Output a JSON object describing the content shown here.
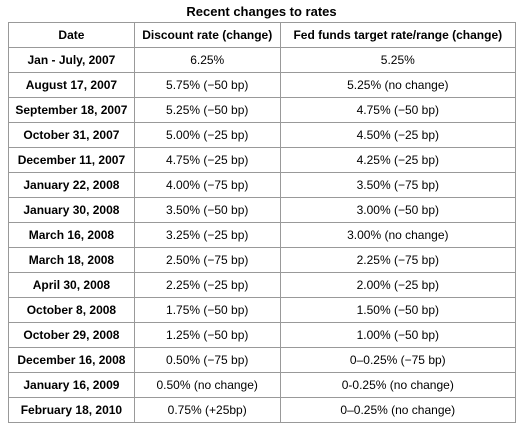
{
  "caption": "Recent changes to rates",
  "headers": [
    "Date",
    "Discount rate (change)",
    "Fed funds target rate/range (change)"
  ],
  "rows": [
    [
      "Jan - July, 2007",
      "6.25%",
      "5.25%"
    ],
    [
      "August 17, 2007",
      "5.75% (−50 bp)",
      "5.25% (no change)"
    ],
    [
      "September 18, 2007",
      "5.25% (−50 bp)",
      "4.75% (−50 bp)"
    ],
    [
      "October 31, 2007",
      "5.00% (−25 bp)",
      "4.50% (−25 bp)"
    ],
    [
      "December 11, 2007",
      "4.75% (−25 bp)",
      "4.25% (−25 bp)"
    ],
    [
      "January 22, 2008",
      "4.00% (−75 bp)",
      "3.50% (−75 bp)"
    ],
    [
      "January 30, 2008",
      "3.50% (−50 bp)",
      "3.00% (−50 bp)"
    ],
    [
      "March 16, 2008",
      "3.25% (−25 bp)",
      "3.00% (no change)"
    ],
    [
      "March 18, 2008",
      "2.50% (−75 bp)",
      "2.25% (−75 bp)"
    ],
    [
      "April 30, 2008",
      "2.25% (−25 bp)",
      "2.00% (−25 bp)"
    ],
    [
      "October 8, 2008",
      "1.75% (−50 bp)",
      "1.50% (−50 bp)"
    ],
    [
      "October 29, 2008",
      "1.25% (−50 bp)",
      "1.00% (−50 bp)"
    ],
    [
      "December 16, 2008",
      "0.50% (−75 bp)",
      "0–0.25% (−75 bp)"
    ],
    [
      "January 16, 2009",
      "0.50% (no change)",
      "0-0.25% (no change)"
    ],
    [
      "February 18, 2010",
      "0.75% (+25bp)",
      "0–0.25% (no change)"
    ]
  ]
}
